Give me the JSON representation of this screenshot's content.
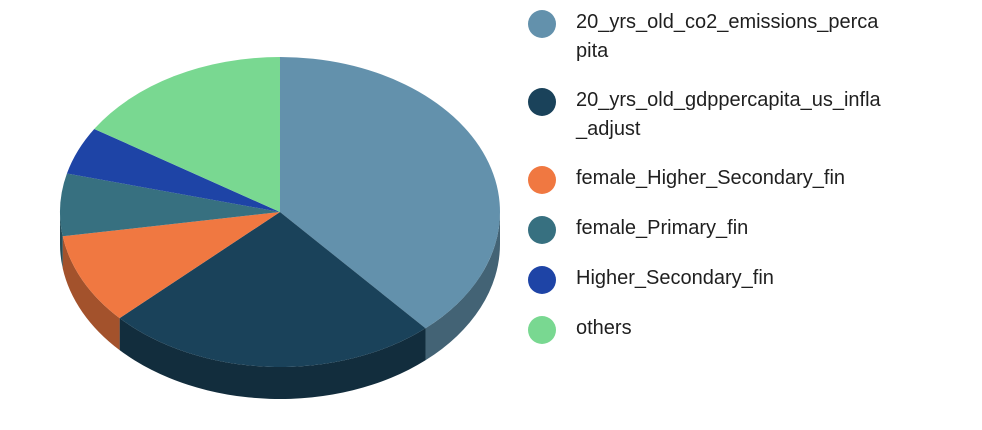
{
  "chart_data": {
    "type": "pie",
    "title": "",
    "style": "3d",
    "legend_position": "right",
    "slices": [
      {
        "label": "20_yrs_old_co2_emissions_percapita",
        "value": 38.5,
        "color": "#6391AC"
      },
      {
        "label": "20_yrs_old_gdppercapita_us_infla_adjust",
        "value": 24.5,
        "color": "#1A425A"
      },
      {
        "label": "female_Higher_Secondary_fin",
        "value": 9.5,
        "color": "#F07841"
      },
      {
        "label": "female_Primary_fin",
        "value": 6.5,
        "color": "#377080"
      },
      {
        "label": "Higher_Secondary_fin",
        "value": 5.0,
        "color": "#1E44A6"
      },
      {
        "label": "others",
        "value": 16.0,
        "color": "#79D891"
      }
    ]
  }
}
